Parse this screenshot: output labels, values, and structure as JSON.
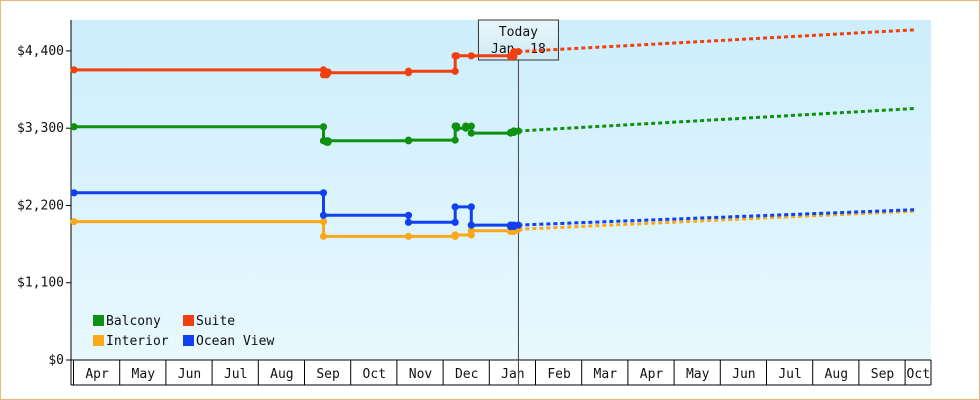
{
  "chart_data": {
    "type": "line",
    "title": "",
    "xlabel": "",
    "ylabel": "",
    "ylim": [
      0,
      4840
    ],
    "y_ticks": [
      {
        "value": 0,
        "label": "$0"
      },
      {
        "value": 1100,
        "label": "$1,100"
      },
      {
        "value": 2200,
        "label": "$2,200"
      },
      {
        "value": 3300,
        "label": "$3,300"
      },
      {
        "value": 4400,
        "label": "$4,400"
      }
    ],
    "x_range": [
      "Apr",
      "Oct"
    ],
    "x_tick_labels": [
      "Apr",
      "May",
      "Jun",
      "Jul",
      "Aug",
      "Sep",
      "Oct",
      "Nov",
      "Dec",
      "Jan",
      "Feb",
      "Mar",
      "Apr",
      "May",
      "Jun",
      "Jul",
      "Aug",
      "Sep",
      "Oct"
    ],
    "today_marker": {
      "line1": "Today",
      "line2": "Jan. 18",
      "x": 9.62
    },
    "legend": {
      "placement": "bottom-left",
      "columns": 2
    },
    "grid": false,
    "background": "light blue gradient",
    "series": [
      {
        "name": "Balcony",
        "color": "#109010",
        "points": [
          [
            0,
            3320
          ],
          [
            5.4,
            3320
          ],
          [
            5.4,
            3120
          ],
          [
            5.47,
            3120
          ],
          [
            5.47,
            3100
          ],
          [
            5.5,
            3100
          ],
          [
            5.5,
            3120
          ],
          [
            7.24,
            3120
          ],
          [
            7.24,
            3130
          ],
          [
            8.25,
            3130
          ],
          [
            8.25,
            3330
          ],
          [
            8.28,
            3330
          ],
          [
            8.28,
            3300
          ],
          [
            8.48,
            3300
          ],
          [
            8.48,
            3330
          ],
          [
            8.6,
            3330
          ],
          [
            8.6,
            3230
          ],
          [
            9.45,
            3230
          ],
          [
            9.45,
            3240
          ],
          [
            9.52,
            3240
          ],
          [
            9.52,
            3260
          ],
          [
            9.62,
            3260
          ]
        ],
        "projection": [
          [
            9.62,
            3260
          ],
          [
            18.2,
            3580
          ]
        ]
      },
      {
        "name": "Suite",
        "color": "#f04010",
        "points": [
          [
            0,
            4130
          ],
          [
            5.4,
            4130
          ],
          [
            5.4,
            4060
          ],
          [
            5.47,
            4060
          ],
          [
            5.47,
            4100
          ],
          [
            5.5,
            4100
          ],
          [
            5.5,
            4090
          ],
          [
            7.24,
            4090
          ],
          [
            7.24,
            4110
          ],
          [
            8.25,
            4110
          ],
          [
            8.25,
            4330
          ],
          [
            8.28,
            4330
          ],
          [
            8.28,
            4330
          ],
          [
            8.6,
            4330
          ],
          [
            8.6,
            4330
          ],
          [
            9.45,
            4330
          ],
          [
            9.45,
            4320
          ],
          [
            9.52,
            4320
          ],
          [
            9.52,
            4390
          ],
          [
            9.62,
            4390
          ]
        ],
        "projection": [
          [
            9.62,
            4390
          ],
          [
            18.2,
            4700
          ]
        ]
      },
      {
        "name": "Interior",
        "color": "#f8a818",
        "points": [
          [
            0,
            1970
          ],
          [
            5.4,
            1970
          ],
          [
            5.4,
            1760
          ],
          [
            7.24,
            1760
          ],
          [
            7.24,
            1760
          ],
          [
            8.25,
            1760
          ],
          [
            8.25,
            1780
          ],
          [
            8.6,
            1780
          ],
          [
            8.6,
            1840
          ],
          [
            9.45,
            1840
          ],
          [
            9.45,
            1830
          ],
          [
            9.52,
            1830
          ],
          [
            9.52,
            1860
          ],
          [
            9.62,
            1860
          ]
        ],
        "projection": [
          [
            9.62,
            1860
          ],
          [
            18.2,
            2120
          ]
        ]
      },
      {
        "name": "Ocean View",
        "color": "#1040f0",
        "points": [
          [
            0,
            2380
          ],
          [
            5.4,
            2380
          ],
          [
            5.4,
            2060
          ],
          [
            7.24,
            2060
          ],
          [
            7.24,
            1960
          ],
          [
            8.25,
            1960
          ],
          [
            8.25,
            2180
          ],
          [
            8.6,
            2180
          ],
          [
            8.6,
            1920
          ],
          [
            9.45,
            1920
          ],
          [
            9.45,
            1900
          ],
          [
            9.52,
            1900
          ],
          [
            9.52,
            1920
          ],
          [
            9.62,
            1920
          ]
        ],
        "projection": [
          [
            9.62,
            1920
          ],
          [
            18.2,
            2140
          ]
        ]
      }
    ]
  }
}
